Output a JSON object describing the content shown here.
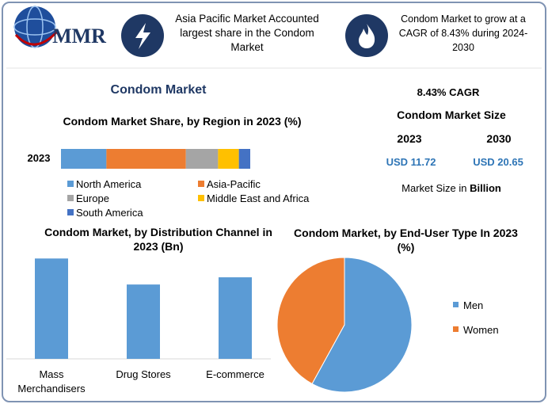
{
  "header": {
    "logo_text": "MMR",
    "callout_1": "Asia Pacific Market Accounted largest share in the Condom Market",
    "callout_2": "Condom Market to grow at a CAGR of 8.43% during 2024-2030"
  },
  "title": "Condom Market",
  "market_size": {
    "cagr": "8.43% CAGR",
    "heading": "Condom Market Size",
    "year_1": "2023",
    "year_2": "2030",
    "value_1": "USD 11.72",
    "value_2": "USD 20.65",
    "unit_prefix": "Market Size in",
    "unit": "Billion"
  },
  "chart_data": [
    {
      "type": "bar",
      "orientation": "horizontal",
      "stacked": true,
      "title": "Condom Market Share, by Region in 2023 (%)",
      "categories": [
        "2023"
      ],
      "xlim": [
        0,
        100
      ],
      "series": [
        {
          "name": "North America",
          "color": "#5b9bd5",
          "values": [
            24
          ]
        },
        {
          "name": "Asia-Pacific",
          "color": "#ed7d31",
          "values": [
            42
          ]
        },
        {
          "name": "Europe",
          "color": "#a5a5a5",
          "values": [
            17
          ]
        },
        {
          "name": "Middle East and Africa",
          "color": "#ffc000",
          "values": [
            11
          ]
        },
        {
          "name": "South America",
          "color": "#4472c4",
          "values": [
            6
          ]
        }
      ]
    },
    {
      "type": "bar",
      "orientation": "vertical",
      "title": "Condom Market, by Distribution Channel in 2023 (Bn)",
      "categories": [
        "Mass Merchandisers",
        "Drug Stores",
        "E-commerce"
      ],
      "values": [
        4.59,
        3.4,
        3.73
      ],
      "color": "#5b9bd5",
      "ylim": [
        0,
        5
      ]
    },
    {
      "type": "pie",
      "title": "Condom Market, by End-User Type In 2023 (%)",
      "categories": [
        "Men",
        "Women"
      ],
      "values": [
        58,
        42
      ],
      "colors": [
        "#5b9bd5",
        "#ed7d31"
      ]
    }
  ]
}
